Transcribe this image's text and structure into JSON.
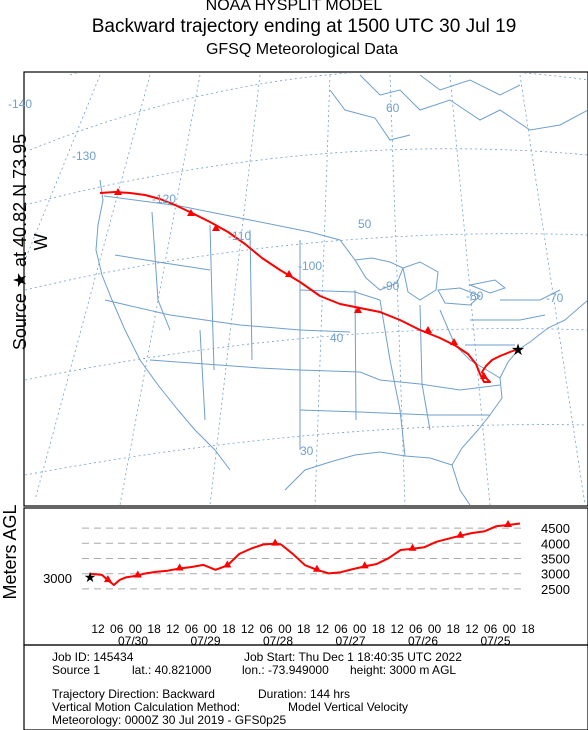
{
  "header": {
    "line1": "NOAA HYSPLIT MODEL",
    "line2": "Backward trajectory ending at 1500 UTC 30 Jul 19",
    "line3": "GFSQ Meteorological Data"
  },
  "source_label": "Source ★  at   40.82 N   73.95 W",
  "map": {
    "lon_labels": [
      "-140",
      "-130",
      "-120",
      "-110",
      "-100",
      "-90",
      "-80",
      "-70"
    ],
    "lat_labels": [
      "60",
      "50",
      "40",
      "30"
    ],
    "colors": {
      "grid": "#6f9fce",
      "trajectory": "#ff0000"
    }
  },
  "chart_data": {
    "type": "line",
    "title": "",
    "ylabel": "Meters AGL",
    "y_ticks": [
      "4500",
      "4000",
      "3500",
      "3000",
      "2500"
    ],
    "ylim": [
      2300,
      4700
    ],
    "start_height_label": "3000",
    "x_hour_ticks": [
      "12",
      "06",
      "00",
      "18",
      "12",
      "06",
      "00",
      "18",
      "12",
      "06",
      "00",
      "18",
      "12",
      "06",
      "00",
      "18",
      "12",
      "06",
      "00",
      "18",
      "12",
      "06",
      "00",
      "18"
    ],
    "x_date_ticks": [
      "07/30",
      "07/29",
      "07/28",
      "07/27",
      "07/26",
      "07/25"
    ],
    "series": [
      {
        "hours_back": [
          0,
          4,
          6,
          8,
          10,
          12,
          16,
          18,
          22,
          26,
          30,
          34,
          38,
          42,
          46,
          50,
          54,
          58,
          62,
          64,
          68,
          72,
          76,
          80,
          84,
          88,
          92,
          96,
          100,
          104,
          108,
          112,
          116,
          120,
          124,
          128,
          132,
          136,
          140,
          144
        ],
        "height_m": [
          3000,
          2960,
          2790,
          2630,
          2800,
          2880,
          2940,
          3000,
          3060,
          3100,
          3170,
          3220,
          3290,
          3130,
          3270,
          3650,
          3830,
          3960,
          3990,
          3960,
          3640,
          3280,
          3130,
          3010,
          3050,
          3150,
          3240,
          3320,
          3510,
          3780,
          3820,
          3870,
          4050,
          4150,
          4250,
          4340,
          4390,
          4560,
          4600,
          4650
        ]
      }
    ]
  },
  "info": {
    "job_id": "Job ID: 145434",
    "job_start": "Job Start: Thu Dec  1 18:40:35 UTC 2022",
    "source": "Source 1",
    "lat": "lat.: 40.821000",
    "lon": "lon.: -73.949000",
    "height": "height: 3000 m AGL",
    "direction": "Trajectory Direction: Backward",
    "duration": "Duration: 144 hrs",
    "vertical": "Vertical Motion Calculation Method:",
    "vertical_value": "Model Vertical Velocity",
    "meteorology": "Meteorology: 0000Z 30 Jul 2019 - GFS0p25"
  }
}
